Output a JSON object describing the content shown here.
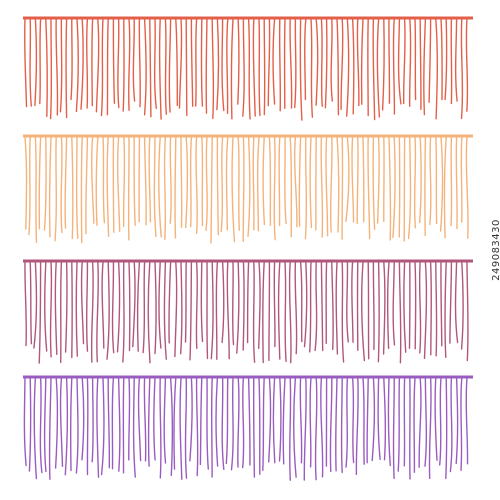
{
  "stock_id": "249083430",
  "fringes": [
    {
      "name": "red-orange",
      "color": "#e2604a"
    },
    {
      "name": "peach",
      "color": "#f3b37a"
    },
    {
      "name": "mauve",
      "color": "#b0577c"
    },
    {
      "name": "purple",
      "color": "#9a5cc0"
    }
  ]
}
